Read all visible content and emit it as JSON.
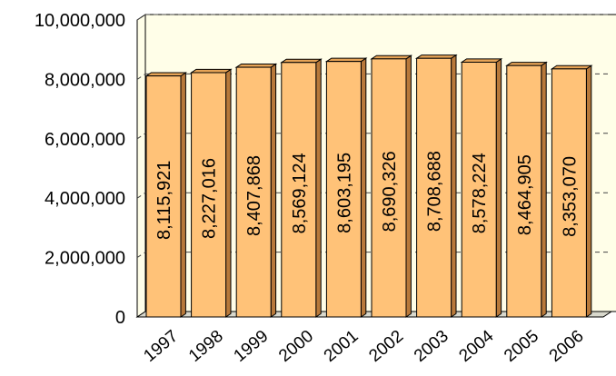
{
  "chart_data": {
    "type": "bar",
    "title": "",
    "xlabel": "",
    "ylabel": "",
    "categories": [
      "1997",
      "1998",
      "1999",
      "2000",
      "2001",
      "2002",
      "2003",
      "2004",
      "2005",
      "2006"
    ],
    "values": [
      8115921,
      8227016,
      8407868,
      8569124,
      8603195,
      8690326,
      8708688,
      8578224,
      8464905,
      8353070
    ],
    "data_labels": [
      "8,115,921",
      "8,227,016",
      "8,407,868",
      "8,569,124",
      "8,603,195",
      "8,690,326",
      "8,708,688",
      "8,578,224",
      "8,464,905",
      "8,353,070"
    ],
    "ylim": [
      0,
      10000000
    ],
    "yticks": [
      0,
      2000000,
      4000000,
      6000000,
      8000000,
      10000000
    ],
    "ytick_labels": [
      "0",
      "2,000,000",
      "4,000,000",
      "6,000,000",
      "8,000,000",
      "10,000,000"
    ],
    "grid": true,
    "legend": "none",
    "colors": {
      "bar_front": "#ffc278",
      "bar_side": "#b8793a",
      "bar_top": "#e6a356",
      "plot_back": "#fffee8",
      "plot_floor": "#d8d8cc",
      "grid": "#444444"
    }
  }
}
